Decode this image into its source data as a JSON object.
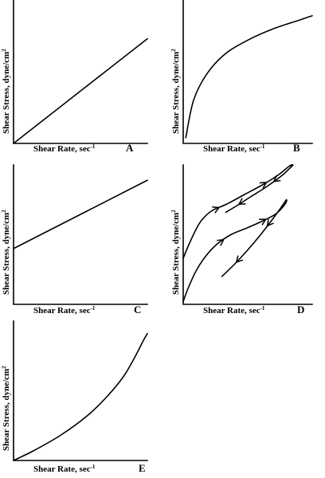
{
  "chart_data": [
    {
      "type": "line",
      "panel_label": "A",
      "xlabel": "Shear Rate, sec",
      "xlabel_superscript": "-1",
      "ylabel": "Shear Stress, dyne/cm",
      "ylabel_superscript": "2",
      "series": [
        {
          "x": [
            0,
            1
          ],
          "y": [
            0,
            0.73
          ]
        }
      ]
    },
    {
      "type": "line",
      "panel_label": "B",
      "xlabel": "Shear Rate, sec",
      "xlabel_superscript": "-1",
      "ylabel": "Shear Stress, dyne/cm",
      "ylabel_superscript": "2",
      "series": [
        {
          "x": [
            0.02,
            0.08,
            0.18,
            0.32,
            0.5,
            0.7,
            0.9,
            1.0
          ],
          "y": [
            0.04,
            0.3,
            0.48,
            0.62,
            0.72,
            0.8,
            0.86,
            0.89
          ]
        }
      ]
    },
    {
      "type": "line",
      "panel_label": "C",
      "xlabel": "Shear Rate, sec",
      "xlabel_superscript": "-1",
      "ylabel": "Shear Stress, dyne/cm",
      "ylabel_superscript": "2",
      "series": [
        {
          "x": [
            0,
            1
          ],
          "y": [
            0.4,
            0.89
          ]
        }
      ]
    },
    {
      "type": "line",
      "panel_label": "D",
      "xlabel": "Shear Rate, sec",
      "xlabel_superscript": "-1",
      "ylabel": "Shear Stress, dyne/cm",
      "ylabel_superscript": "2",
      "series": [
        {
          "x": [
            0.0,
            0.04,
            0.09,
            0.14,
            0.22,
            0.34,
            0.48,
            0.62,
            0.74,
            0.82,
            0.85,
            0.83,
            0.76,
            0.64,
            0.52,
            0.42,
            0.33
          ],
          "y": [
            0.33,
            0.42,
            0.52,
            0.6,
            0.67,
            0.72,
            0.79,
            0.86,
            0.93,
            0.99,
            1.0,
            0.98,
            0.92,
            0.84,
            0.77,
            0.71,
            0.66
          ]
        },
        {
          "x": [
            0.0,
            0.04,
            0.1,
            0.17,
            0.26,
            0.37,
            0.5,
            0.62,
            0.72,
            0.79,
            0.8,
            0.77,
            0.7,
            0.6,
            0.5,
            0.4,
            0.3
          ],
          "y": [
            0.02,
            0.12,
            0.24,
            0.34,
            0.43,
            0.5,
            0.55,
            0.6,
            0.65,
            0.72,
            0.75,
            0.71,
            0.62,
            0.5,
            0.39,
            0.29,
            0.2
          ]
        }
      ]
    },
    {
      "type": "line",
      "panel_label": "E",
      "xlabel": "Shear Rate, sec",
      "xlabel_superscript": "-1",
      "ylabel": "Shear Stress, dyne/cm",
      "ylabel_superscript": "2",
      "series": [
        {
          "x": [
            0,
            0.15,
            0.35,
            0.55,
            0.7,
            0.82,
            0.9,
            0.97,
            1.0
          ],
          "y": [
            0,
            0.07,
            0.18,
            0.32,
            0.46,
            0.6,
            0.73,
            0.86,
            0.91
          ]
        }
      ]
    }
  ]
}
